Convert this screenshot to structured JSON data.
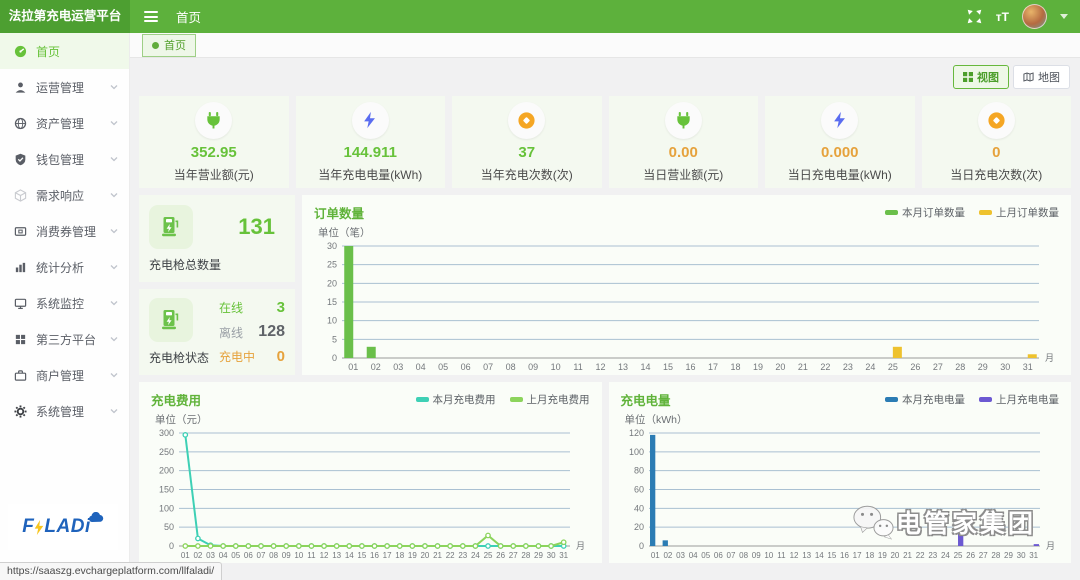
{
  "colors": {
    "header_green": "#5db13c",
    "brand_green": "#4d9f31",
    "accent_green": "#67c23a",
    "accent_orange": "#e6a23c",
    "series_teal": "#3ed0b5",
    "series_light_green": "#8cd45c",
    "series_blue": "#2b7cb4",
    "series_purple": "#6c59d2",
    "series_yellow": "#eec22e",
    "series_green": "#6abf4a",
    "bolt_blue": "#5a6cf0",
    "coin_orange": "#f5a623"
  },
  "header": {
    "brand": "法拉第充电运营平台",
    "nav_title": "首页",
    "font_size_icon_label": "тT"
  },
  "tabbar": {
    "tab_label": "首页"
  },
  "sidebar": {
    "items": [
      {
        "label": "首页"
      },
      {
        "label": "运营管理"
      },
      {
        "label": "资产管理"
      },
      {
        "label": "钱包管理"
      },
      {
        "label": "需求响应"
      },
      {
        "label": "消费券管理"
      },
      {
        "label": "统计分析"
      },
      {
        "label": "系统监控"
      },
      {
        "label": "第三方平台"
      },
      {
        "label": "商户管理"
      },
      {
        "label": "系统管理"
      }
    ]
  },
  "logo": {
    "part1": "F",
    "part2": "LADi"
  },
  "toggles": {
    "view": "视图",
    "map": "地图"
  },
  "stats": [
    {
      "value": "352.95",
      "label": "当年营业额(元)"
    },
    {
      "value": "144.911",
      "label": "当年充电电量(kWh)"
    },
    {
      "value": "37",
      "label": "当年充电次数(次)"
    },
    {
      "value": "0.00",
      "label": "当日营业额(元)"
    },
    {
      "value": "0.000",
      "label": "当日充电电量(kWh)"
    },
    {
      "value": "0",
      "label": "当日充电次数(次)"
    }
  ],
  "gun_total": {
    "value": "131",
    "label": "充电枪总数量"
  },
  "gun_status": {
    "label": "充电枪状态",
    "rows": [
      {
        "label": "在线",
        "value": "3"
      },
      {
        "label": "离线",
        "value": "128"
      },
      {
        "label": "充电中",
        "value": "0"
      }
    ]
  },
  "watermark": {
    "text": "电管家集团"
  },
  "statusbar": {
    "url": "https://saaszg.evchargeplatform.com/llfaladi/"
  },
  "chart_data": [
    {
      "type": "bar",
      "title": "订单数量",
      "unit_label": "单位（笔）",
      "x_unit": "月",
      "legend_position": "top-right",
      "grid": true,
      "categories": [
        "01",
        "02",
        "03",
        "04",
        "05",
        "06",
        "07",
        "08",
        "09",
        "10",
        "11",
        "12",
        "13",
        "14",
        "15",
        "16",
        "17",
        "18",
        "19",
        "20",
        "21",
        "22",
        "23",
        "24",
        "25",
        "26",
        "27",
        "28",
        "29",
        "30",
        "31"
      ],
      "ylim": [
        0,
        30
      ],
      "yticks": [
        0,
        5,
        10,
        15,
        20,
        25,
        30
      ],
      "series": [
        {
          "name": "本月订单数量",
          "color": "#6abf4a",
          "values": [
            30,
            3,
            0,
            0,
            0,
            0,
            0,
            0,
            0,
            0,
            0,
            0,
            0,
            0,
            0,
            0,
            0,
            0,
            0,
            0,
            0,
            0,
            0,
            0,
            0,
            0,
            0,
            0,
            0,
            0,
            0
          ]
        },
        {
          "name": "上月订单数量",
          "color": "#eec22e",
          "values": [
            0,
            0,
            0,
            0,
            0,
            0,
            0,
            0,
            0,
            0,
            0,
            0,
            0,
            0,
            0,
            0,
            0,
            0,
            0,
            0,
            0,
            0,
            0,
            0,
            3,
            0,
            0,
            0,
            0,
            0,
            1
          ]
        }
      ]
    },
    {
      "type": "line",
      "title": "充电费用",
      "unit_label": "单位（元）",
      "x_unit": "月",
      "legend_position": "top-right",
      "grid": true,
      "categories": [
        "01",
        "02",
        "03",
        "04",
        "05",
        "06",
        "07",
        "08",
        "09",
        "10",
        "11",
        "12",
        "13",
        "14",
        "15",
        "16",
        "17",
        "18",
        "19",
        "20",
        "21",
        "22",
        "23",
        "24",
        "25",
        "26",
        "27",
        "28",
        "29",
        "30",
        "31"
      ],
      "ylim": [
        0,
        300
      ],
      "yticks": [
        0,
        50,
        100,
        150,
        200,
        250,
        300
      ],
      "series": [
        {
          "name": "本月充电费用",
          "color": "#3ed0b5",
          "values": [
            295,
            20,
            2,
            0,
            0,
            0,
            0,
            0,
            0,
            0,
            0,
            0,
            0,
            0,
            0,
            0,
            0,
            0,
            0,
            0,
            0,
            0,
            0,
            0,
            0,
            0,
            0,
            0,
            0,
            0,
            0
          ]
        },
        {
          "name": "上月充电费用",
          "color": "#8cd45c",
          "values": [
            0,
            0,
            0,
            0,
            0,
            0,
            0,
            0,
            0,
            0,
            0,
            0,
            0,
            0,
            0,
            0,
            0,
            0,
            0,
            0,
            0,
            0,
            0,
            0,
            28,
            0,
            0,
            0,
            0,
            0,
            10
          ]
        }
      ]
    },
    {
      "type": "bar",
      "title": "充电电量",
      "unit_label": "单位（kWh）",
      "x_unit": "月",
      "legend_position": "top-right",
      "grid": true,
      "categories": [
        "01",
        "02",
        "03",
        "04",
        "05",
        "06",
        "07",
        "08",
        "09",
        "10",
        "11",
        "12",
        "13",
        "14",
        "15",
        "16",
        "17",
        "18",
        "19",
        "20",
        "21",
        "22",
        "23",
        "24",
        "25",
        "26",
        "27",
        "28",
        "29",
        "30",
        "31"
      ],
      "ylim": [
        0,
        120
      ],
      "yticks": [
        0,
        20,
        40,
        60,
        80,
        100,
        120
      ],
      "series": [
        {
          "name": "本月充电电量",
          "color": "#2b7cb4",
          "values": [
            118,
            6,
            0,
            0,
            0,
            0,
            0,
            0,
            0,
            0,
            0,
            0,
            0,
            0,
            0,
            0,
            0,
            0,
            0,
            0,
            0,
            0,
            0,
            0,
            0,
            0,
            0,
            0,
            0,
            0,
            0
          ]
        },
        {
          "name": "上月充电电量",
          "color": "#6c59d2",
          "values": [
            0,
            0,
            0,
            0,
            0,
            0,
            0,
            0,
            0,
            0,
            0,
            0,
            0,
            0,
            0,
            0,
            0,
            0,
            0,
            0,
            0,
            0,
            0,
            0,
            15,
            0,
            0,
            0,
            0,
            0,
            2
          ]
        }
      ]
    }
  ]
}
